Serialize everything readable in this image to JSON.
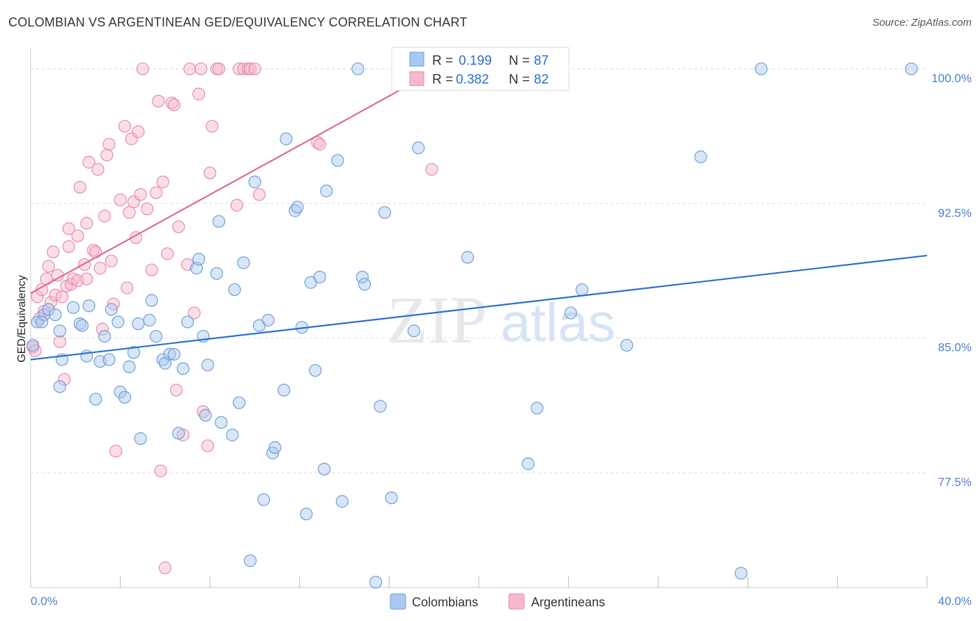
{
  "header": {
    "title": "COLOMBIAN VS ARGENTINEAN GED/EQUIVALENCY CORRELATION CHART",
    "source": "Source: ZipAtlas.com"
  },
  "watermark": {
    "zip": "ZIP",
    "atlas": "atlas"
  },
  "colors": {
    "colombians_fill": "#a9c8ef",
    "colombians_stroke": "#6f9fd8",
    "colombians_line": "#2a6fd0",
    "argentineans_fill": "#f6b8cc",
    "argentineans_stroke": "#e98aa9",
    "argentineans_line": "#e06892",
    "tick_label": "#4a7fd0",
    "grid": "#dddddd"
  },
  "legend": {
    "rows": [
      {
        "r_label": "R =",
        "r_value": "0.199",
        "n_label": "N =",
        "n_value": "87"
      },
      {
        "r_label": "R =",
        "r_value": "0.382",
        "n_label": "N =",
        "n_value": "82"
      }
    ]
  },
  "chart_data": {
    "type": "scatter",
    "title": "COLOMBIAN VS ARGENTINEAN GED/EQUIVALENCY CORRELATION CHART",
    "xlabel": "",
    "ylabel": "GED/Equivalency",
    "xlim": [
      0,
      40
    ],
    "ylim": [
      71.1,
      101.2
    ],
    "x_tick_labels": [
      "0.0%",
      "40.0%"
    ],
    "y_ticks": [
      77.5,
      85.0,
      92.5,
      100.0
    ],
    "y_tick_labels": [
      "77.5%",
      "85.0%",
      "92.5%",
      "100.0%"
    ],
    "legend_position": "top-center",
    "series": [
      {
        "name": "Colombians",
        "R": 0.199,
        "N": 87,
        "trend": {
          "x": [
            0,
            40
          ],
          "y": [
            83.8,
            89.6
          ]
        },
        "points": [
          [
            0.1,
            84.6
          ],
          [
            0.3,
            85.9
          ],
          [
            0.6,
            86.3
          ],
          [
            0.8,
            86.6
          ],
          [
            1.3,
            85.4
          ],
          [
            1.4,
            83.8
          ],
          [
            1.9,
            86.7
          ],
          [
            1.3,
            82.3
          ],
          [
            2.2,
            85.8
          ],
          [
            2.3,
            85.7
          ],
          [
            2.5,
            84.0
          ],
          [
            2.6,
            86.8
          ],
          [
            2.9,
            81.6
          ],
          [
            3.1,
            83.7
          ],
          [
            3.3,
            85.1
          ],
          [
            3.5,
            83.8
          ],
          [
            3.6,
            86.6
          ],
          [
            3.9,
            85.9
          ],
          [
            4.0,
            82.0
          ],
          [
            4.2,
            81.7
          ],
          [
            4.4,
            83.4
          ],
          [
            4.6,
            84.2
          ],
          [
            4.8,
            85.8
          ],
          [
            4.9,
            79.4
          ],
          [
            5.3,
            86.0
          ],
          [
            5.4,
            87.1
          ],
          [
            5.6,
            85.1
          ],
          [
            5.9,
            83.8
          ],
          [
            6.0,
            83.6
          ],
          [
            6.2,
            84.1
          ],
          [
            6.4,
            84.1
          ],
          [
            6.6,
            79.7
          ],
          [
            6.8,
            83.3
          ],
          [
            7.0,
            85.9
          ],
          [
            7.4,
            88.9
          ],
          [
            7.5,
            89.4
          ],
          [
            7.7,
            85.1
          ],
          [
            7.8,
            80.7
          ],
          [
            7.9,
            83.5
          ],
          [
            8.3,
            88.6
          ],
          [
            8.4,
            91.5
          ],
          [
            8.5,
            80.3
          ],
          [
            9.0,
            79.6
          ],
          [
            9.1,
            87.7
          ],
          [
            9.3,
            81.4
          ],
          [
            9.5,
            89.2
          ],
          [
            9.8,
            72.6
          ],
          [
            10.0,
            93.7
          ],
          [
            10.2,
            85.7
          ],
          [
            10.4,
            76.0
          ],
          [
            10.6,
            86.0
          ],
          [
            10.8,
            78.6
          ],
          [
            10.9,
            78.9
          ],
          [
            11.3,
            82.1
          ],
          [
            11.4,
            96.1
          ],
          [
            11.8,
            92.1
          ],
          [
            11.9,
            92.3
          ],
          [
            12.1,
            85.6
          ],
          [
            12.3,
            75.2
          ],
          [
            12.5,
            88.1
          ],
          [
            12.7,
            83.2
          ],
          [
            12.9,
            88.4
          ],
          [
            13.1,
            77.7
          ],
          [
            13.2,
            93.2
          ],
          [
            13.7,
            94.9
          ],
          [
            13.9,
            75.9
          ],
          [
            14.6,
            100.0
          ],
          [
            14.8,
            88.4
          ],
          [
            14.9,
            88.0
          ],
          [
            15.4,
            71.4
          ],
          [
            15.6,
            81.2
          ],
          [
            15.8,
            92.0
          ],
          [
            16.1,
            76.1
          ],
          [
            17.1,
            85.4
          ],
          [
            17.3,
            95.6
          ],
          [
            19.5,
            89.5
          ],
          [
            22.2,
            78.0
          ],
          [
            22.6,
            81.1
          ],
          [
            24.1,
            86.4
          ],
          [
            24.6,
            87.7
          ],
          [
            26.6,
            84.6
          ],
          [
            29.9,
            95.1
          ],
          [
            31.7,
            71.9
          ],
          [
            32.6,
            100.0
          ],
          [
            39.3,
            100.0
          ],
          [
            0.5,
            85.9
          ],
          [
            1.1,
            86.3
          ]
        ]
      },
      {
        "name": "Argentineans",
        "R": 0.382,
        "N": 82,
        "trend": {
          "x": [
            0,
            18.2
          ],
          "y": [
            87.5,
            100.0
          ]
        },
        "points": [
          [
            0.1,
            84.5
          ],
          [
            0.3,
            87.3
          ],
          [
            0.5,
            87.7
          ],
          [
            0.6,
            86.5
          ],
          [
            0.7,
            88.3
          ],
          [
            0.8,
            89.0
          ],
          [
            0.9,
            87.0
          ],
          [
            1.0,
            89.8
          ],
          [
            1.1,
            87.4
          ],
          [
            1.2,
            88.5
          ],
          [
            1.3,
            84.8
          ],
          [
            1.4,
            87.3
          ],
          [
            1.5,
            82.7
          ],
          [
            1.6,
            87.9
          ],
          [
            1.7,
            90.1
          ],
          [
            1.7,
            91.1
          ],
          [
            1.8,
            88.0
          ],
          [
            1.9,
            88.3
          ],
          [
            2.1,
            88.2
          ],
          [
            2.1,
            90.7
          ],
          [
            2.2,
            93.4
          ],
          [
            2.4,
            89.1
          ],
          [
            2.5,
            91.4
          ],
          [
            2.5,
            88.3
          ],
          [
            2.6,
            94.8
          ],
          [
            2.8,
            89.9
          ],
          [
            2.9,
            89.8
          ],
          [
            3.0,
            94.4
          ],
          [
            3.1,
            88.9
          ],
          [
            3.2,
            85.5
          ],
          [
            3.3,
            91.8
          ],
          [
            3.4,
            95.2
          ],
          [
            3.5,
            95.8
          ],
          [
            3.6,
            89.3
          ],
          [
            3.7,
            86.9
          ],
          [
            3.8,
            78.7
          ],
          [
            4.0,
            92.7
          ],
          [
            4.2,
            96.8
          ],
          [
            4.3,
            87.8
          ],
          [
            4.4,
            92.0
          ],
          [
            4.5,
            96.1
          ],
          [
            4.6,
            92.6
          ],
          [
            4.7,
            90.6
          ],
          [
            4.8,
            96.5
          ],
          [
            4.9,
            93.0
          ],
          [
            5.0,
            100.0
          ],
          [
            5.2,
            92.2
          ],
          [
            5.4,
            88.8
          ],
          [
            5.6,
            93.1
          ],
          [
            5.7,
            98.2
          ],
          [
            5.8,
            77.6
          ],
          [
            5.9,
            93.7
          ],
          [
            6.0,
            72.2
          ],
          [
            6.1,
            89.7
          ],
          [
            6.3,
            98.1
          ],
          [
            6.4,
            98.0
          ],
          [
            6.5,
            82.1
          ],
          [
            6.6,
            91.2
          ],
          [
            6.8,
            79.6
          ],
          [
            7.0,
            89.1
          ],
          [
            7.1,
            100.0
          ],
          [
            7.3,
            86.4
          ],
          [
            7.5,
            98.6
          ],
          [
            7.6,
            100.0
          ],
          [
            7.7,
            80.9
          ],
          [
            7.9,
            79.0
          ],
          [
            8.0,
            94.2
          ],
          [
            8.1,
            96.8
          ],
          [
            8.3,
            100.0
          ],
          [
            8.4,
            100.0
          ],
          [
            9.2,
            92.4
          ],
          [
            9.3,
            100.0
          ],
          [
            9.5,
            100.0
          ],
          [
            9.7,
            100.0
          ],
          [
            9.8,
            100.0
          ],
          [
            10.0,
            100.0
          ],
          [
            10.2,
            93.0
          ],
          [
            12.8,
            95.9
          ],
          [
            12.9,
            95.8
          ],
          [
            17.9,
            94.4
          ],
          [
            0.2,
            84.3
          ],
          [
            0.4,
            86.1
          ]
        ]
      }
    ]
  }
}
